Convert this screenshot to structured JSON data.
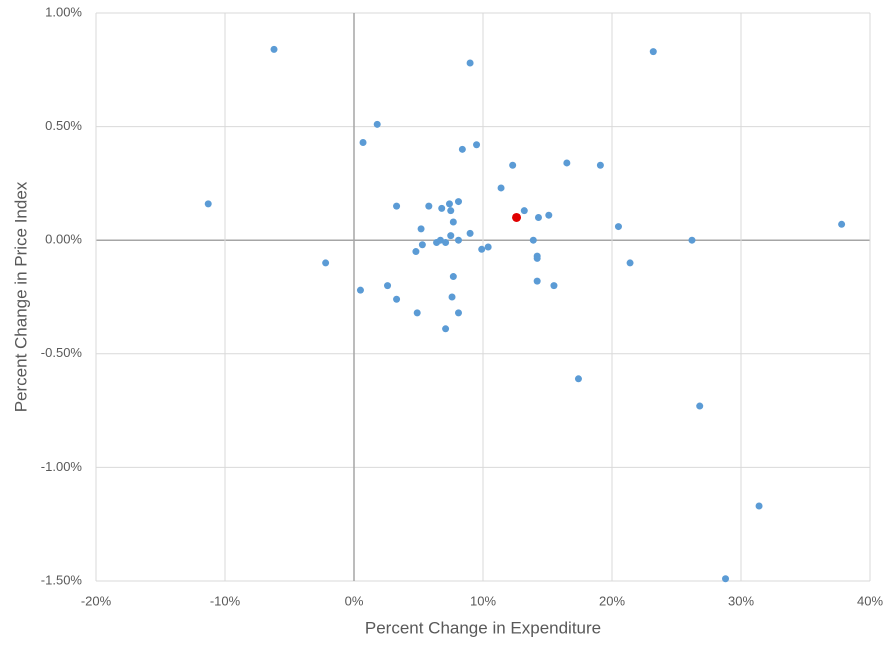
{
  "chart_data": {
    "type": "scatter",
    "xlabel": "Percent Change in Expenditure",
    "ylabel": "Percent Change in Price Index",
    "xlim": [
      -20,
      40
    ],
    "ylim": [
      -1.5,
      1.0
    ],
    "xticks": [
      {
        "value": -20,
        "label": "-20%"
      },
      {
        "value": -10,
        "label": "-10%"
      },
      {
        "value": 0,
        "label": "0%"
      },
      {
        "value": 10,
        "label": "10%"
      },
      {
        "value": 20,
        "label": "20%"
      },
      {
        "value": 30,
        "label": "30%"
      },
      {
        "value": 40,
        "label": "40%"
      }
    ],
    "yticks": [
      {
        "value": -1.5,
        "label": "-1.50%"
      },
      {
        "value": -1.0,
        "label": "-1.00%"
      },
      {
        "value": -0.5,
        "label": "-0.50%"
      },
      {
        "value": 0,
        "label": "0.00%"
      },
      {
        "value": 0.5,
        "label": "0.50%"
      },
      {
        "value": 1.0,
        "label": "1.00%"
      }
    ],
    "grid": true,
    "series": [
      {
        "color": "#5b9bd5",
        "x": [
          -6.2,
          -11.3,
          -2.2,
          0.5,
          0.7,
          1.8,
          2.6,
          3.3,
          3.3,
          4.9,
          4.8,
          5.2,
          5.3,
          5.8,
          6.4,
          6.7,
          6.8,
          7.1,
          7.1,
          7.4,
          7.5,
          7.7,
          7.5,
          7.7,
          7.6,
          8.1,
          8.1,
          8.1,
          8.4,
          9.0,
          9.0,
          9.5,
          9.9,
          10.4,
          11.4,
          12.3,
          13.2,
          13.9,
          14.2,
          14.2,
          14.2,
          14.3,
          15.1,
          15.5,
          16.5,
          17.4,
          19.1,
          20.5,
          21.4,
          23.2,
          26.2,
          26.8,
          28.8,
          31.4,
          37.8
        ],
        "values": [
          0.84,
          0.16,
          -0.1,
          -0.22,
          0.43,
          0.51,
          -0.2,
          0.15,
          -0.26,
          -0.32,
          -0.05,
          0.05,
          -0.02,
          0.15,
          -0.01,
          0.0,
          0.14,
          -0.01,
          -0.39,
          0.16,
          0.13,
          0.08,
          0.02,
          -0.16,
          -0.25,
          0.17,
          0.0,
          -0.32,
          0.4,
          0.78,
          0.03,
          0.42,
          -0.04,
          -0.03,
          0.23,
          0.33,
          0.13,
          0.0,
          -0.07,
          -0.08,
          -0.18,
          0.1,
          0.11,
          -0.2,
          0.34,
          -0.61,
          0.33,
          0.06,
          -0.1,
          0.83,
          0.0,
          -0.73,
          -1.49,
          -1.17,
          0.07
        ]
      },
      {
        "color": "#e00000",
        "x": [
          12.6
        ],
        "values": [
          0.1
        ]
      }
    ]
  }
}
